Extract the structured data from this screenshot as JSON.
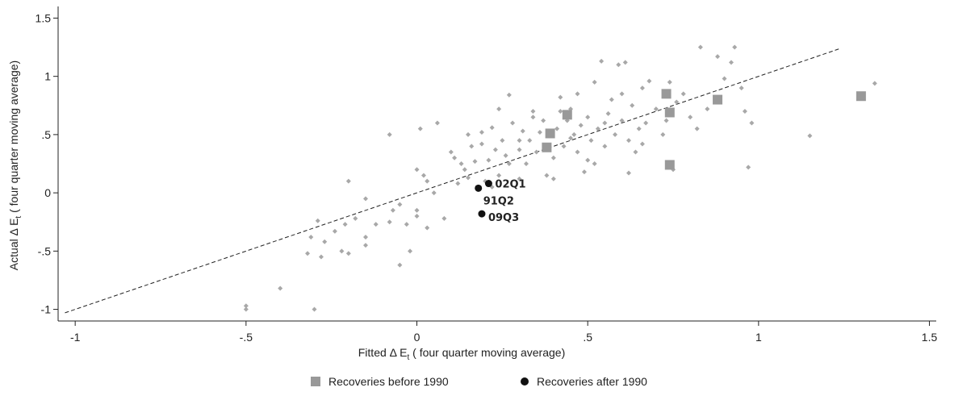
{
  "chart_data": {
    "type": "scatter",
    "xlabel_main": "Fitted Δ E",
    "xlabel_sub": "t",
    "xlabel_suffix": " ( four quarter moving average)",
    "ylabel_main": "Actual Δ E",
    "ylabel_sub": "t",
    "ylabel_suffix": " ( four quarter moving average)",
    "xlim": [
      -1.05,
      1.52
    ],
    "ylim": [
      -1.1,
      1.6
    ],
    "x_ticks": [
      {
        "value": -1,
        "label": "-1"
      },
      {
        "value": -0.5,
        "label": "-.5"
      },
      {
        "value": 0,
        "label": "0"
      },
      {
        "value": 0.5,
        "label": ".5"
      },
      {
        "value": 1,
        "label": "1"
      },
      {
        "value": 1.5,
        "label": "1.5"
      }
    ],
    "y_ticks": [
      {
        "value": -1,
        "label": "-1"
      },
      {
        "value": -0.5,
        "label": "-.5"
      },
      {
        "value": 0,
        "label": "0"
      },
      {
        "value": 0.5,
        "label": ".5"
      },
      {
        "value": 1,
        "label": "1"
      },
      {
        "value": 1.5,
        "label": "1.5"
      }
    ],
    "grid": false,
    "legend_position": "bottom",
    "fit_line": {
      "x": [
        -1.03,
        1.24
      ],
      "y": [
        -1.03,
        1.24
      ],
      "style": "dashed"
    },
    "series": [
      {
        "name": "",
        "marker": "small-diamond",
        "color": "#a8a8a8",
        "points": [
          [
            -0.5,
            -0.97
          ],
          [
            -0.5,
            -1.0
          ],
          [
            -0.3,
            -1.0
          ],
          [
            -0.4,
            -0.82
          ],
          [
            -0.32,
            -0.52
          ],
          [
            -0.31,
            -0.38
          ],
          [
            -0.29,
            -0.24
          ],
          [
            -0.28,
            -0.55
          ],
          [
            -0.27,
            -0.42
          ],
          [
            -0.24,
            -0.33
          ],
          [
            -0.22,
            -0.5
          ],
          [
            -0.21,
            -0.27
          ],
          [
            -0.2,
            -0.52
          ],
          [
            -0.18,
            -0.22
          ],
          [
            -0.15,
            -0.38
          ],
          [
            -0.2,
            0.1
          ],
          [
            -0.15,
            -0.05
          ],
          [
            -0.12,
            -0.27
          ],
          [
            -0.15,
            -0.45
          ],
          [
            -0.08,
            -0.25
          ],
          [
            -0.07,
            -0.15
          ],
          [
            -0.05,
            -0.62
          ],
          [
            -0.05,
            -0.1
          ],
          [
            -0.08,
            0.5
          ],
          [
            -0.03,
            -0.27
          ],
          [
            -0.02,
            -0.5
          ],
          [
            0.0,
            -0.15
          ],
          [
            0.0,
            0.2
          ],
          [
            0.02,
            0.15
          ],
          [
            0.0,
            -0.2
          ],
          [
            0.01,
            0.55
          ],
          [
            0.03,
            -0.3
          ],
          [
            0.05,
            0.0
          ],
          [
            0.03,
            0.1
          ],
          [
            0.06,
            0.6
          ],
          [
            0.08,
            -0.22
          ],
          [
            0.1,
            0.35
          ],
          [
            0.12,
            0.08
          ],
          [
            0.13,
            0.25
          ],
          [
            0.15,
            0.5
          ],
          [
            0.15,
            0.13
          ],
          [
            0.17,
            0.27
          ],
          [
            0.16,
            0.4
          ],
          [
            0.19,
            0.52
          ],
          [
            0.2,
            0.1
          ],
          [
            0.22,
            0.05
          ],
          [
            0.23,
            0.37
          ],
          [
            0.24,
            0.15
          ],
          [
            0.25,
            0.45
          ],
          [
            0.27,
            0.25
          ],
          [
            0.28,
            0.6
          ],
          [
            0.3,
            0.37
          ],
          [
            0.3,
            0.12
          ],
          [
            0.27,
            0.84
          ],
          [
            0.31,
            0.53
          ],
          [
            0.32,
            0.25
          ],
          [
            0.33,
            0.45
          ],
          [
            0.34,
            0.7
          ],
          [
            0.35,
            0.35
          ],
          [
            0.37,
            0.62
          ],
          [
            0.38,
            0.15
          ],
          [
            0.39,
            0.5
          ],
          [
            0.4,
            0.3
          ],
          [
            0.41,
            0.55
          ],
          [
            0.42,
            0.82
          ],
          [
            0.43,
            0.4
          ],
          [
            0.44,
            0.62
          ],
          [
            0.45,
            0.72
          ],
          [
            0.46,
            0.5
          ],
          [
            0.47,
            0.35
          ],
          [
            0.48,
            0.58
          ],
          [
            0.49,
            0.18
          ],
          [
            0.5,
            0.65
          ],
          [
            0.51,
            0.45
          ],
          [
            0.52,
            0.95
          ],
          [
            0.53,
            0.55
          ],
          [
            0.54,
            1.13
          ],
          [
            0.55,
            0.4
          ],
          [
            0.56,
            0.68
          ],
          [
            0.57,
            0.8
          ],
          [
            0.58,
            0.5
          ],
          [
            0.59,
            1.1
          ],
          [
            0.6,
            0.62
          ],
          [
            0.61,
            1.12
          ],
          [
            0.62,
            0.45
          ],
          [
            0.63,
            0.75
          ],
          [
            0.64,
            0.35
          ],
          [
            0.65,
            0.55
          ],
          [
            0.66,
            0.9
          ],
          [
            0.67,
            0.6
          ],
          [
            0.68,
            0.96
          ],
          [
            0.7,
            0.72
          ],
          [
            0.72,
            0.5
          ],
          [
            0.73,
            0.62
          ],
          [
            0.74,
            0.95
          ],
          [
            0.75,
            0.2
          ],
          [
            0.76,
            0.78
          ],
          [
            0.78,
            0.85
          ],
          [
            0.8,
            0.65
          ],
          [
            0.82,
            0.55
          ],
          [
            0.83,
            1.25
          ],
          [
            0.85,
            0.72
          ],
          [
            0.88,
            1.17
          ],
          [
            0.9,
            0.98
          ],
          [
            0.92,
            1.12
          ],
          [
            0.93,
            1.25
          ],
          [
            0.95,
            0.9
          ],
          [
            0.96,
            0.7
          ],
          [
            0.98,
            0.6
          ],
          [
            0.97,
            0.22
          ],
          [
            1.15,
            0.49
          ],
          [
            1.34,
            0.94
          ],
          [
            0.62,
            0.17
          ],
          [
            0.5,
            0.28
          ],
          [
            0.47,
            0.85
          ],
          [
            0.36,
            0.52
          ],
          [
            0.34,
            0.65
          ],
          [
            0.42,
            0.7
          ],
          [
            0.3,
            0.45
          ],
          [
            0.26,
            0.32
          ],
          [
            0.21,
            0.28
          ],
          [
            0.14,
            0.2
          ],
          [
            0.19,
            0.42
          ],
          [
            0.22,
            0.56
          ],
          [
            0.24,
            0.72
          ],
          [
            0.11,
            0.3
          ],
          [
            0.45,
            0.47
          ],
          [
            0.55,
            0.6
          ],
          [
            0.6,
            0.85
          ],
          [
            0.66,
            0.42
          ],
          [
            0.52,
            0.25
          ],
          [
            0.4,
            0.12
          ]
        ]
      },
      {
        "name": "Recoveries before 1990",
        "marker": "square",
        "color": "#999999",
        "points": [
          [
            0.38,
            0.39
          ],
          [
            0.39,
            0.51
          ],
          [
            0.44,
            0.67
          ],
          [
            0.73,
            0.85
          ],
          [
            0.74,
            0.69
          ],
          [
            0.74,
            0.24
          ],
          [
            0.88,
            0.8
          ],
          [
            1.3,
            0.83
          ]
        ]
      },
      {
        "name": "Recoveries after 1990",
        "marker": "circle",
        "color": "#111111",
        "points": [
          [
            0.21,
            0.08
          ],
          [
            0.18,
            0.04
          ],
          [
            0.19,
            -0.18
          ]
        ]
      }
    ],
    "annotations": [
      {
        "label": "02Q1",
        "x": 0.21,
        "y": 0.08
      },
      {
        "label": "91Q2",
        "x": 0.18,
        "y": 0.04
      },
      {
        "label": "09Q3",
        "x": 0.19,
        "y": -0.18
      }
    ]
  }
}
